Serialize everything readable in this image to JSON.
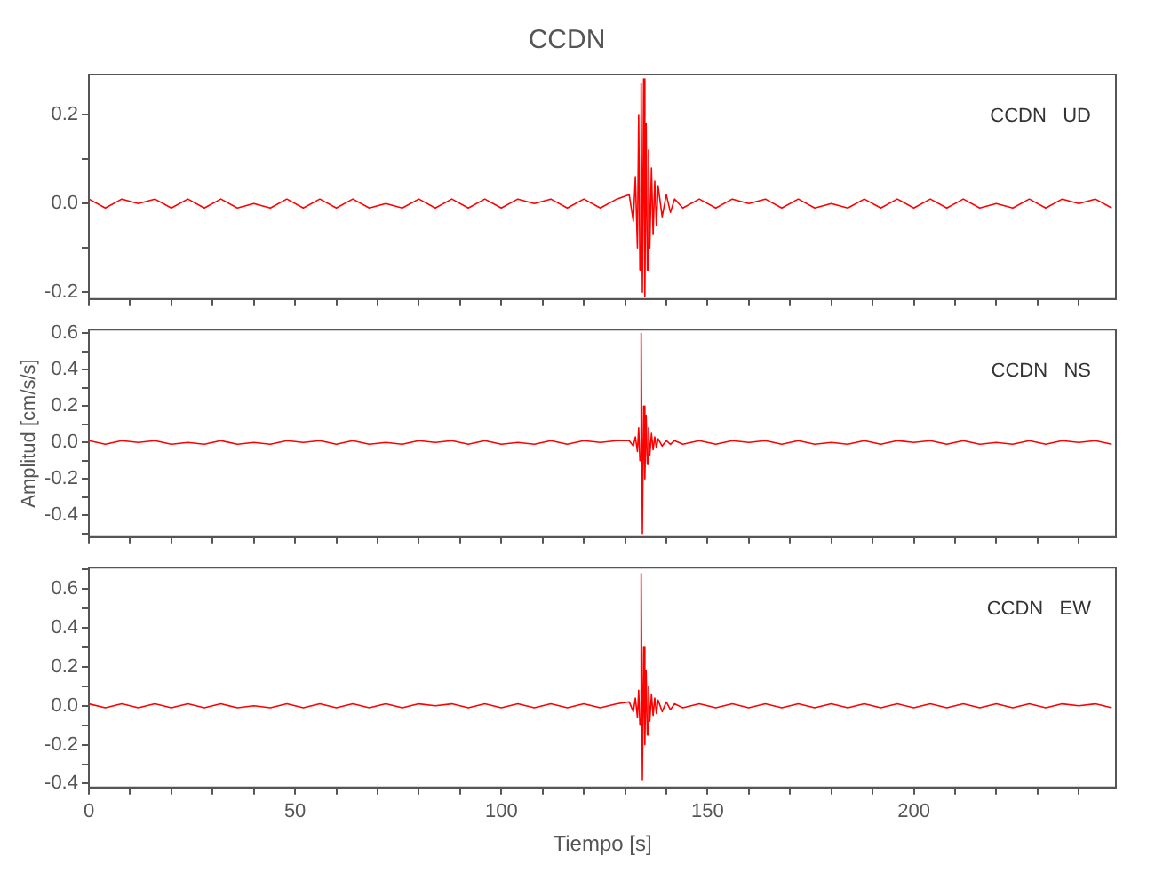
{
  "chart_data": [
    {
      "type": "line",
      "title": "CCDN",
      "annotations": [
        "CCDN   UD"
      ],
      "tick_labels": "y",
      "marker": "none",
      "grid": false,
      "legend": false,
      "x": [
        0,
        4,
        8,
        12,
        16,
        20,
        24,
        28,
        32,
        36,
        40,
        44,
        48,
        52,
        56,
        60,
        64,
        68,
        72,
        76,
        80,
        84,
        88,
        92,
        96,
        100,
        104,
        108,
        112,
        116,
        120,
        124,
        128,
        131,
        132,
        132.5,
        133,
        133.3,
        133.6,
        133.9,
        134.2,
        134.5,
        134.8,
        135.1,
        135.4,
        135.7,
        136,
        136.4,
        136.8,
        137.2,
        137.6,
        138,
        139,
        140,
        141,
        142,
        144,
        148,
        152,
        156,
        160,
        164,
        168,
        172,
        176,
        180,
        184,
        188,
        192,
        196,
        200,
        204,
        208,
        212,
        216,
        220,
        224,
        228,
        232,
        236,
        240,
        244,
        248
      ],
      "xlim": [
        0,
        249
      ],
      "xticks": [
        0,
        {
          "value": 10,
          "label": null
        },
        {
          "value": 20,
          "label": null
        },
        {
          "value": 30,
          "label": null
        },
        {
          "value": 40,
          "label": null
        },
        50,
        {
          "value": 60,
          "label": null
        },
        {
          "value": 70,
          "label": null
        },
        {
          "value": 80,
          "label": null
        },
        {
          "value": 90,
          "label": null
        },
        100,
        {
          "value": 110,
          "label": null
        },
        {
          "value": 120,
          "label": null
        },
        {
          "value": 130,
          "label": null
        },
        {
          "value": 140,
          "label": null
        },
        150,
        {
          "value": 160,
          "label": null
        },
        {
          "value": 170,
          "label": null
        },
        {
          "value": 180,
          "label": null
        },
        {
          "value": 190,
          "label": null
        },
        200,
        {
          "value": 210,
          "label": null
        },
        {
          "value": 220,
          "label": null
        },
        {
          "value": 230,
          "label": null
        },
        {
          "value": 240,
          "label": null
        }
      ],
      "ylim": [
        -0.215,
        0.29
      ],
      "yticks": [
        -0.2,
        {
          "value": -0.1,
          "label": null
        },
        {
          "value": 0,
          "label": "0.0"
        },
        {
          "value": 0.1,
          "label": null
        },
        0.2
      ],
      "series": [
        {
          "color": "#ff0000",
          "values": [
            0.01,
            -0.01,
            0.01,
            0,
            0.01,
            -0.01,
            0.01,
            -0.01,
            0.01,
            -0.01,
            0,
            -0.01,
            0.01,
            -0.01,
            0.01,
            -0.01,
            0.01,
            -0.01,
            0,
            -0.01,
            0.01,
            -0.01,
            0.01,
            -0.01,
            0.01,
            -0.01,
            0.01,
            0,
            0.01,
            -0.01,
            0.01,
            -0.01,
            0.01,
            0.02,
            -0.04,
            0.06,
            -0.1,
            0.2,
            -0.15,
            0.27,
            -0.2,
            0.28,
            -0.21,
            0.18,
            -0.15,
            0.12,
            -0.1,
            0.08,
            -0.07,
            0.05,
            -0.05,
            0.04,
            -0.03,
            0.02,
            -0.02,
            0.01,
            -0.01,
            0.01,
            -0.01,
            0.01,
            0,
            0.01,
            -0.01,
            0.01,
            -0.01,
            0,
            -0.01,
            0.01,
            -0.01,
            0.01,
            -0.01,
            0.01,
            -0.01,
            0.01,
            -0.01,
            0,
            -0.01,
            0.01,
            -0.01,
            0.01,
            0,
            0.01,
            -0.01
          ]
        }
      ]
    },
    {
      "type": "line",
      "ylabel": "Amplitud [cm/s/s]",
      "annotations": [
        "CCDN   NS"
      ],
      "tick_labels": "y",
      "marker": "none",
      "grid": false,
      "legend": false,
      "x": [
        0,
        4,
        8,
        12,
        16,
        20,
        24,
        28,
        32,
        36,
        40,
        44,
        48,
        52,
        56,
        60,
        64,
        68,
        72,
        76,
        80,
        84,
        88,
        92,
        96,
        100,
        104,
        108,
        112,
        116,
        120,
        124,
        128,
        131,
        132,
        132.5,
        133,
        133.3,
        133.6,
        133.9,
        134.2,
        134.5,
        134.8,
        135.1,
        135.4,
        135.7,
        136,
        136.4,
        136.8,
        137.2,
        137.6,
        138,
        139,
        140,
        141,
        142,
        144,
        148,
        152,
        156,
        160,
        164,
        168,
        172,
        176,
        180,
        184,
        188,
        192,
        196,
        200,
        204,
        208,
        212,
        216,
        220,
        224,
        228,
        232,
        236,
        240,
        244,
        248
      ],
      "xlim": [
        0,
        249
      ],
      "xticks": [
        0,
        {
          "value": 10,
          "label": null
        },
        {
          "value": 20,
          "label": null
        },
        {
          "value": 30,
          "label": null
        },
        {
          "value": 40,
          "label": null
        },
        50,
        {
          "value": 60,
          "label": null
        },
        {
          "value": 70,
          "label": null
        },
        {
          "value": 80,
          "label": null
        },
        {
          "value": 90,
          "label": null
        },
        100,
        {
          "value": 110,
          "label": null
        },
        {
          "value": 120,
          "label": null
        },
        {
          "value": 130,
          "label": null
        },
        {
          "value": 140,
          "label": null
        },
        150,
        {
          "value": 160,
          "label": null
        },
        {
          "value": 170,
          "label": null
        },
        {
          "value": 180,
          "label": null
        },
        {
          "value": 190,
          "label": null
        },
        200,
        {
          "value": 210,
          "label": null
        },
        {
          "value": 220,
          "label": null
        },
        {
          "value": 230,
          "label": null
        },
        {
          "value": 240,
          "label": null
        }
      ],
      "ylim": [
        -0.52,
        0.62
      ],
      "yticks": [
        {
          "value": -0.5,
          "label": null
        },
        -0.4,
        {
          "value": -0.3,
          "label": null
        },
        -0.2,
        {
          "value": -0.1,
          "label": null
        },
        {
          "value": 0,
          "label": "0.0"
        },
        {
          "value": 0.1,
          "label": null
        },
        0.2,
        {
          "value": 0.3,
          "label": null
        },
        0.4,
        {
          "value": 0.5,
          "label": null
        },
        0.6
      ],
      "series": [
        {
          "color": "#ff0000",
          "values": [
            0.01,
            -0.01,
            0.01,
            0,
            0.01,
            -0.01,
            0,
            -0.01,
            0.01,
            -0.01,
            0,
            -0.01,
            0.01,
            0,
            0.01,
            -0.01,
            0.01,
            -0.01,
            0,
            -0.01,
            0.01,
            0,
            0.01,
            -0.01,
            0.01,
            -0.01,
            0,
            -0.01,
            0.01,
            -0.01,
            0.01,
            0,
            0.01,
            0.01,
            -0.02,
            0.03,
            -0.05,
            0.08,
            -0.1,
            0.6,
            -0.5,
            0.2,
            -0.2,
            0.15,
            -0.12,
            0.08,
            -0.07,
            0.05,
            -0.04,
            0.03,
            -0.03,
            0.02,
            -0.02,
            0.01,
            -0.01,
            0.01,
            -0.01,
            0.01,
            -0.01,
            0.01,
            0,
            0.01,
            -0.01,
            0.01,
            -0.01,
            0,
            -0.01,
            0.01,
            -0.01,
            0.01,
            0,
            0.01,
            -0.01,
            0.01,
            -0.01,
            0,
            -0.01,
            0.01,
            -0.01,
            0.01,
            0,
            0.01,
            -0.01
          ]
        }
      ]
    },
    {
      "type": "line",
      "xlabel": "Tiempo [s]",
      "annotations": [
        "CCDN   EW"
      ],
      "marker": "none",
      "grid": false,
      "legend": false,
      "x": [
        0,
        4,
        8,
        12,
        16,
        20,
        24,
        28,
        32,
        36,
        40,
        44,
        48,
        52,
        56,
        60,
        64,
        68,
        72,
        76,
        80,
        84,
        88,
        92,
        96,
        100,
        104,
        108,
        112,
        116,
        120,
        124,
        128,
        131,
        132,
        132.5,
        133,
        133.3,
        133.6,
        133.9,
        134.2,
        134.5,
        134.8,
        135.1,
        135.4,
        135.7,
        136,
        136.4,
        136.8,
        137.2,
        137.6,
        138,
        139,
        140,
        141,
        142,
        144,
        148,
        152,
        156,
        160,
        164,
        168,
        172,
        176,
        180,
        184,
        188,
        192,
        196,
        200,
        204,
        208,
        212,
        216,
        220,
        224,
        228,
        232,
        236,
        240,
        244,
        248
      ],
      "xlim": [
        0,
        249
      ],
      "xticks": [
        0,
        {
          "value": 10,
          "label": null
        },
        {
          "value": 20,
          "label": null
        },
        {
          "value": 30,
          "label": null
        },
        {
          "value": 40,
          "label": null
        },
        50,
        {
          "value": 60,
          "label": null
        },
        {
          "value": 70,
          "label": null
        },
        {
          "value": 80,
          "label": null
        },
        {
          "value": 90,
          "label": null
        },
        100,
        {
          "value": 110,
          "label": null
        },
        {
          "value": 120,
          "label": null
        },
        {
          "value": 130,
          "label": null
        },
        {
          "value": 140,
          "label": null
        },
        150,
        {
          "value": 160,
          "label": null
        },
        {
          "value": 170,
          "label": null
        },
        {
          "value": 180,
          "label": null
        },
        {
          "value": 190,
          "label": null
        },
        200,
        {
          "value": 210,
          "label": null
        },
        {
          "value": 220,
          "label": null
        },
        {
          "value": 230,
          "label": null
        },
        {
          "value": 240,
          "label": null
        }
      ],
      "ylim": [
        -0.42,
        0.71
      ],
      "yticks": [
        -0.4,
        {
          "value": -0.3,
          "label": null
        },
        -0.2,
        {
          "value": -0.1,
          "label": null
        },
        {
          "value": 0,
          "label": "0.0"
        },
        {
          "value": 0.1,
          "label": null
        },
        0.2,
        {
          "value": 0.3,
          "label": null
        },
        0.4,
        {
          "value": 0.5,
          "label": null
        },
        0.6,
        {
          "value": 0.7,
          "label": null
        }
      ],
      "series": [
        {
          "color": "#ff0000",
          "values": [
            0.01,
            -0.01,
            0.01,
            -0.01,
            0.01,
            -0.01,
            0.01,
            -0.01,
            0.01,
            -0.01,
            0,
            -0.01,
            0.01,
            -0.01,
            0.01,
            -0.01,
            0.01,
            -0.01,
            0.01,
            -0.01,
            0.01,
            0,
            0.01,
            -0.01,
            0.01,
            -0.01,
            0.01,
            -0.01,
            0.01,
            -0.01,
            0.01,
            -0.01,
            0.01,
            0.02,
            -0.03,
            0.04,
            -0.06,
            0.08,
            -0.1,
            0.68,
            -0.38,
            0.3,
            -0.2,
            0.18,
            -0.15,
            0.1,
            -0.08,
            0.06,
            -0.05,
            0.04,
            -0.04,
            0.03,
            -0.03,
            0.02,
            -0.02,
            0.01,
            -0.01,
            0.01,
            -0.01,
            0.01,
            -0.01,
            0.01,
            -0.01,
            0.01,
            -0.01,
            0.01,
            -0.01,
            0.01,
            -0.01,
            0.01,
            -0.01,
            0.01,
            -0.01,
            0.01,
            -0.01,
            0.01,
            -0.01,
            0.01,
            -0.01,
            0.01,
            0,
            0.01,
            -0.01
          ]
        }
      ]
    }
  ]
}
